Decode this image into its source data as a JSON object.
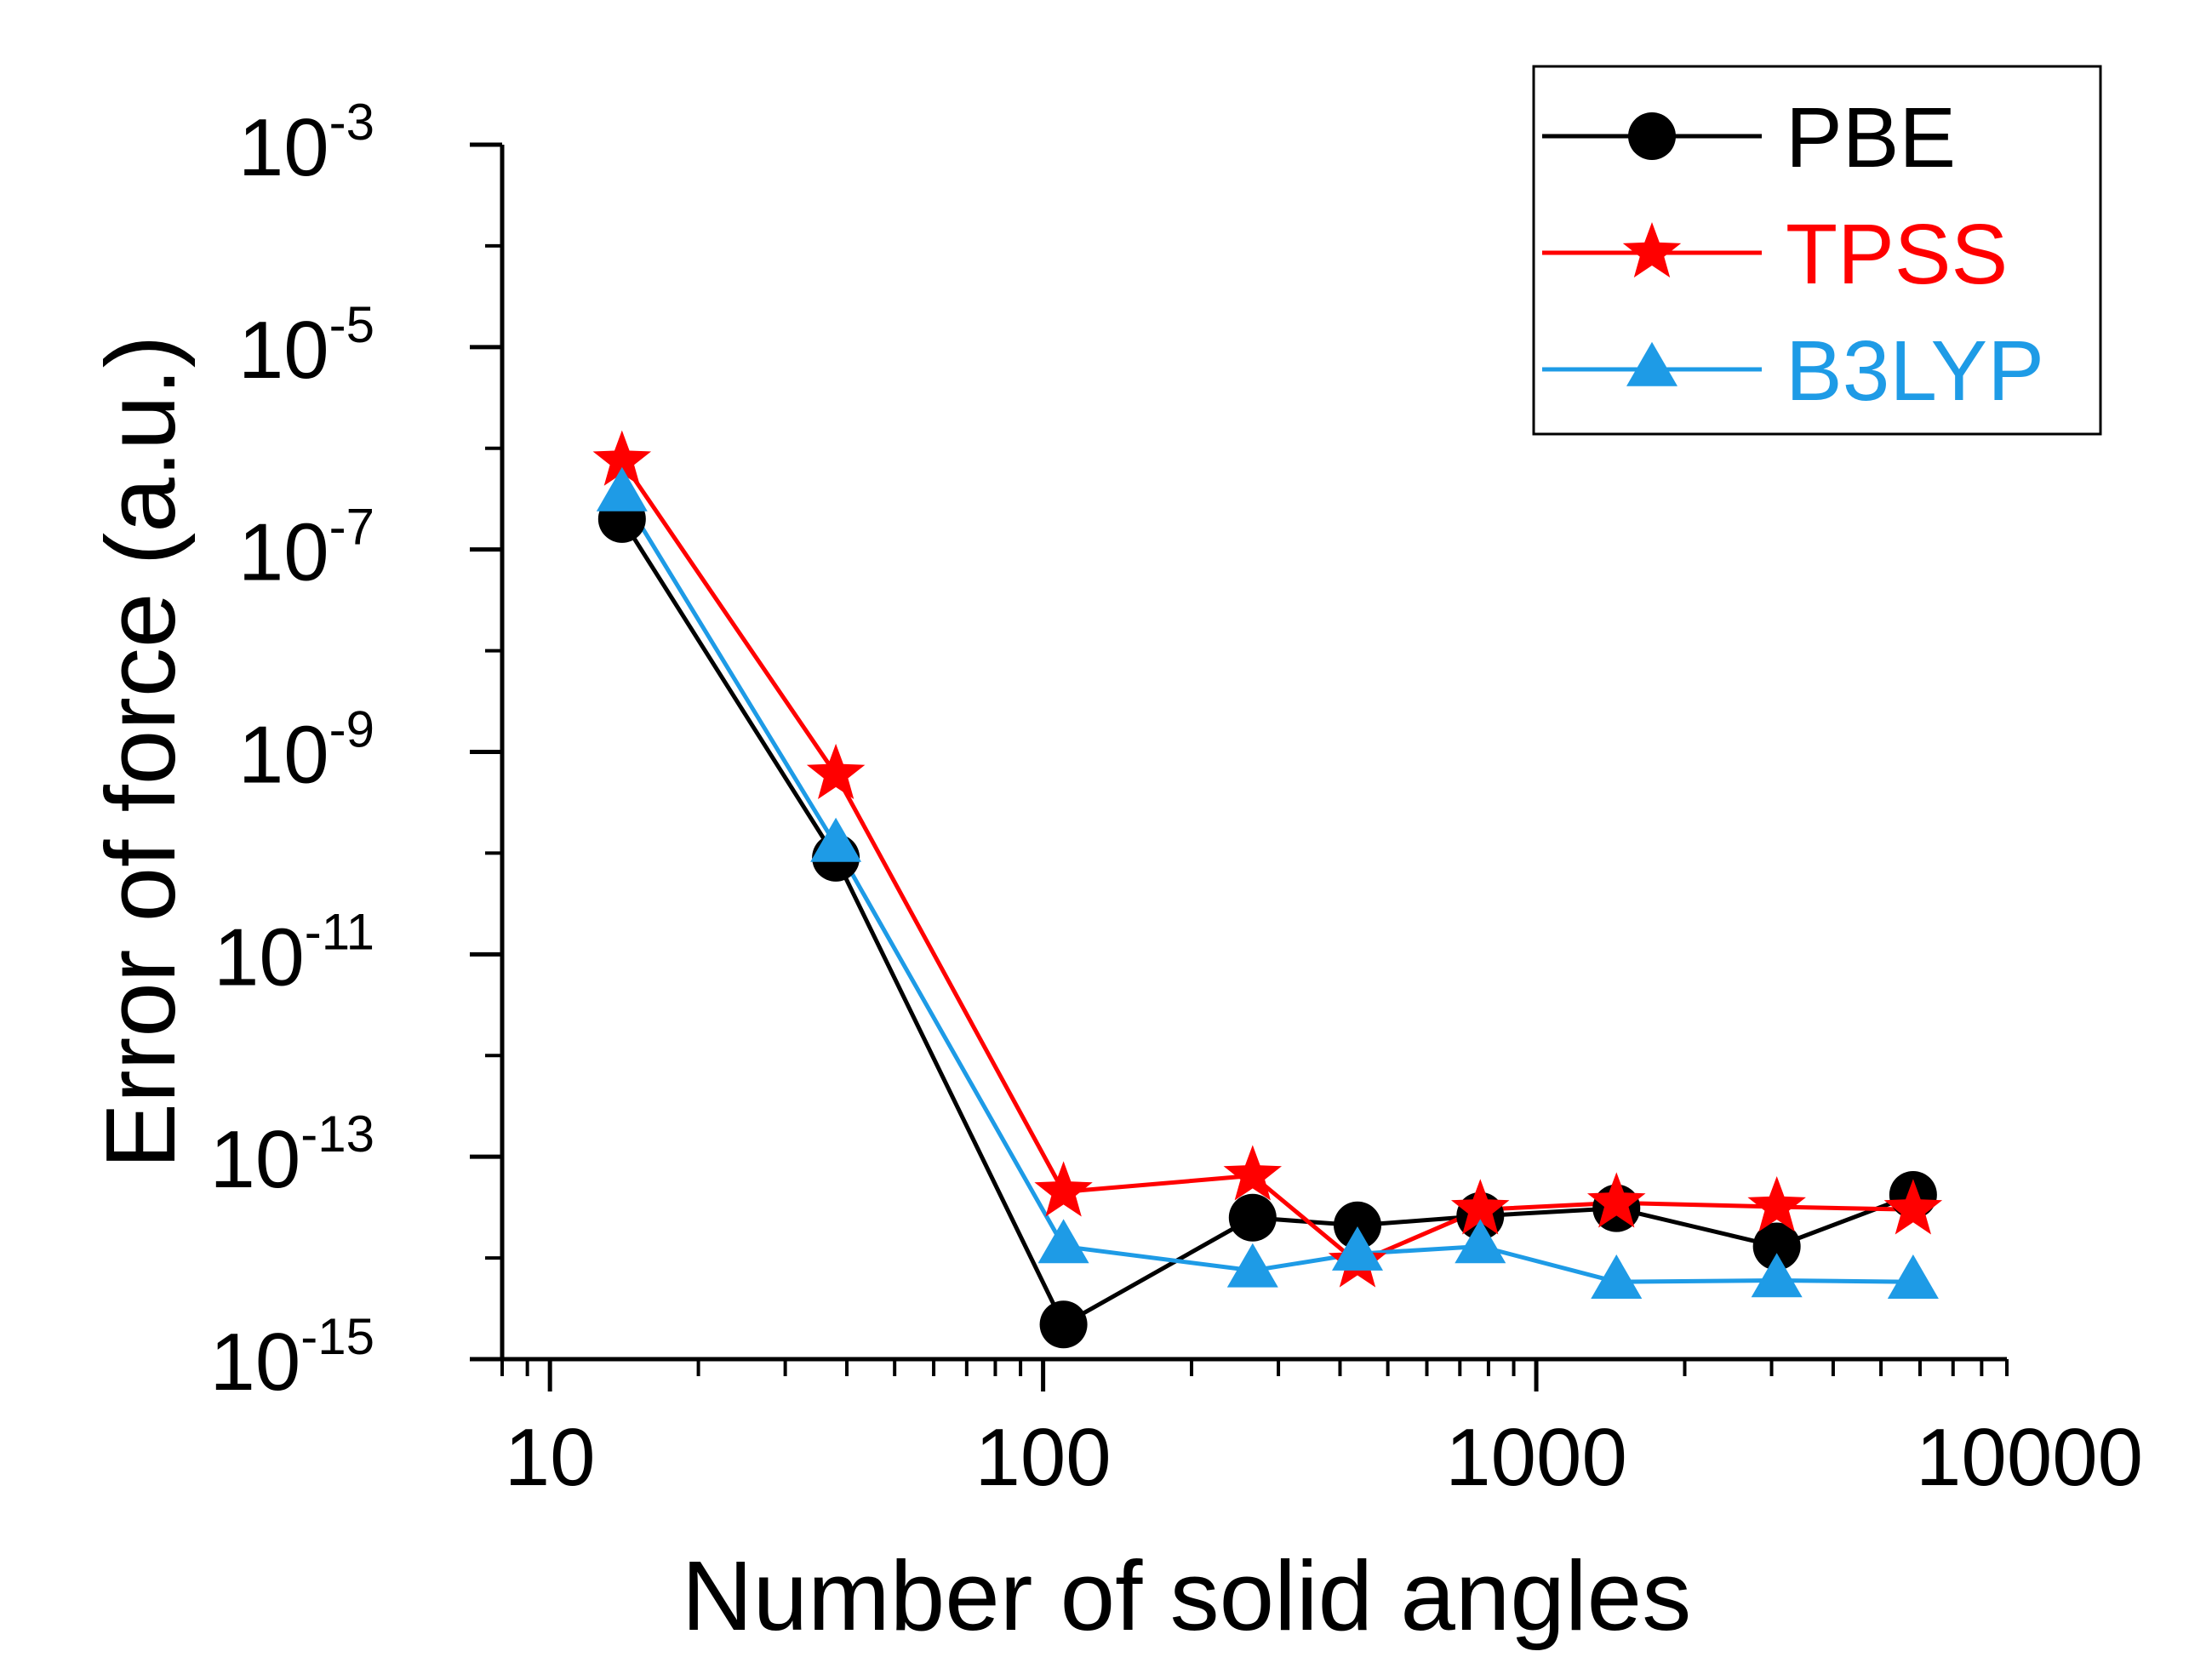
{
  "chart_data": {
    "type": "line",
    "xscale": "log",
    "yscale": "log",
    "xlabel": "Number of solid angles",
    "ylabel": "Error of force (a.u.)",
    "xlim": [
      8,
      9000
    ],
    "ylim": [
      1e-15,
      0.001
    ],
    "x_major_ticks": [
      10,
      100,
      1000,
      10000
    ],
    "x_tick_labels": [
      "10",
      "100",
      "1000",
      "10000"
    ],
    "y_major_ticks": [
      {
        "base": "10",
        "exp": "-3",
        "value": 0.001
      },
      {
        "base": "10",
        "exp": "-5",
        "value": 1e-05
      },
      {
        "base": "10",
        "exp": "-7",
        "value": 1e-07
      },
      {
        "base": "10",
        "exp": "-9",
        "value": 1e-09
      },
      {
        "base": "10",
        "exp": "-11",
        "value": 1e-11
      },
      {
        "base": "10",
        "exp": "-13",
        "value": 1e-13
      },
      {
        "base": "10",
        "exp": "-15",
        "value": 1e-15
      }
    ],
    "x": [
      14,
      38,
      110,
      266,
      434,
      770,
      1454,
      3074,
      5810
    ],
    "legend_position": "top-right",
    "series": [
      {
        "name": "PBE",
        "color": "#000000",
        "marker": "circle",
        "values": [
          2e-07,
          9e-11,
          2.2e-15,
          2.5e-14,
          2.1e-14,
          2.6e-14,
          3.1e-14,
          1.3e-14,
          4.2e-14
        ]
      },
      {
        "name": "TPSS",
        "color": "#ff0000",
        "marker": "star",
        "values": [
          7.5e-07,
          6e-10,
          4.5e-14,
          6.5e-14,
          9e-15,
          3e-14,
          3.5e-14,
          3.2e-14,
          3e-14
        ]
      },
      {
        "name": "B3LYP",
        "color": "#1e9be6",
        "marker": "triangle",
        "values": [
          3.5e-07,
          1.2e-10,
          1.3e-14,
          7.5e-15,
          1.1e-14,
          1.3e-14,
          5.8e-15,
          6e-15,
          5.8e-15
        ]
      }
    ]
  }
}
